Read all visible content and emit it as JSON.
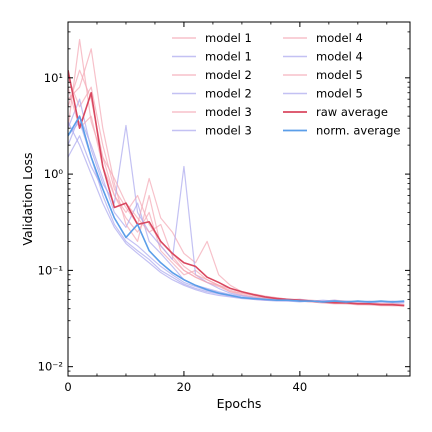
{
  "chart_data": {
    "type": "line",
    "title": "",
    "xlabel": "Epochs",
    "ylabel": "Validation Loss",
    "xlim": [
      0,
      59
    ],
    "ylim": [
      0.008,
      38
    ],
    "yscale": "log",
    "x_ticks": [
      0,
      20,
      40
    ],
    "x_tick_labels": [
      "0",
      "20",
      "40"
    ],
    "y_ticks": [
      0.01,
      0.1,
      1,
      10
    ],
    "y_tick_labels": [
      "10⁻²",
      "10⁻¹",
      "10⁰",
      "10¹"
    ],
    "grid": false,
    "legend": {
      "position": "top-right",
      "columns": 2
    },
    "series": [
      {
        "name": "model 1",
        "color": "#f4a6b4",
        "opacity": 0.7,
        "width": 1.2,
        "x": [
          0,
          2,
          4,
          6,
          8,
          10,
          12,
          14,
          16,
          18,
          20,
          22,
          24,
          26,
          28,
          30,
          32,
          34,
          36,
          38,
          40,
          42,
          44,
          46,
          48,
          50,
          52,
          54,
          56,
          58
        ],
        "values": [
          3.0,
          25,
          3.5,
          1.5,
          0.6,
          0.35,
          0.25,
          0.4,
          0.16,
          0.12,
          0.09,
          0.1,
          0.08,
          0.07,
          0.06,
          0.058,
          0.055,
          0.053,
          0.052,
          0.05,
          0.05,
          0.049,
          0.048,
          0.049,
          0.048,
          0.047,
          0.046,
          0.045,
          0.045,
          0.044
        ]
      },
      {
        "name": "model 1",
        "color": "#a9a6ee",
        "opacity": 0.7,
        "width": 1.2,
        "x": [
          0,
          2,
          4,
          6,
          8,
          10,
          12,
          14,
          16,
          18,
          20,
          22,
          24,
          26,
          28,
          30,
          32,
          34,
          36,
          38,
          40,
          42,
          44,
          46,
          48,
          50,
          52,
          54,
          56,
          58
        ],
        "values": [
          2.0,
          4.0,
          2.0,
          0.9,
          0.4,
          0.28,
          0.5,
          0.2,
          0.15,
          0.11,
          0.08,
          0.07,
          0.065,
          0.06,
          0.056,
          0.054,
          0.052,
          0.05,
          0.05,
          0.049,
          0.048,
          0.048,
          0.047,
          0.048,
          0.047,
          0.047,
          0.046,
          0.047,
          0.046,
          0.046
        ]
      },
      {
        "name": "model 2",
        "color": "#f4a6b4",
        "opacity": 0.7,
        "width": 1.2,
        "x": [
          0,
          2,
          4,
          6,
          8,
          10,
          12,
          14,
          16,
          18,
          20,
          22,
          24,
          26,
          28,
          30,
          32,
          34,
          36,
          38,
          40,
          42,
          44,
          46,
          48,
          50,
          52,
          54,
          56,
          58
        ],
        "values": [
          6.0,
          8.0,
          20,
          3.0,
          0.8,
          0.3,
          0.2,
          0.6,
          0.18,
          0.13,
          0.1,
          0.085,
          0.075,
          0.07,
          0.062,
          0.058,
          0.055,
          0.052,
          0.05,
          0.049,
          0.048,
          0.047,
          0.046,
          0.045,
          0.045,
          0.044,
          0.044,
          0.043,
          0.043,
          0.043
        ]
      },
      {
        "name": "model 2",
        "color": "#a9a6ee",
        "opacity": 0.7,
        "width": 1.2,
        "x": [
          0,
          2,
          4,
          6,
          8,
          10,
          12,
          14,
          16,
          18,
          20,
          22,
          24,
          26,
          28,
          30,
          32,
          34,
          36,
          38,
          40,
          42,
          44,
          46,
          48,
          50,
          52,
          54,
          56,
          58
        ],
        "values": [
          1.5,
          2.5,
          1.2,
          0.7,
          0.35,
          0.22,
          0.18,
          0.14,
          0.11,
          0.09,
          0.075,
          0.068,
          0.062,
          0.058,
          0.055,
          0.052,
          0.051,
          0.05,
          0.049,
          0.049,
          0.048,
          0.048,
          0.049,
          0.048,
          0.048,
          0.047,
          0.048,
          0.047,
          0.047,
          0.048
        ]
      },
      {
        "name": "model 3",
        "color": "#f4a6b4",
        "opacity": 0.7,
        "width": 1.2,
        "x": [
          0,
          2,
          4,
          6,
          8,
          10,
          12,
          14,
          16,
          18,
          20,
          22,
          24,
          26,
          28,
          30,
          32,
          34,
          36,
          38,
          40,
          42,
          44,
          46,
          48,
          50,
          52,
          54,
          56,
          58
        ],
        "values": [
          10,
          5.0,
          8.0,
          2.0,
          0.7,
          0.45,
          0.3,
          0.9,
          0.35,
          0.25,
          0.15,
          0.12,
          0.2,
          0.09,
          0.07,
          0.06,
          0.056,
          0.053,
          0.051,
          0.05,
          0.049,
          0.048,
          0.047,
          0.046,
          0.046,
          0.045,
          0.045,
          0.045,
          0.044,
          0.044
        ]
      },
      {
        "name": "model 3",
        "color": "#a9a6ee",
        "opacity": 0.7,
        "width": 1.2,
        "x": [
          0,
          2,
          4,
          6,
          8,
          10,
          12,
          14,
          16,
          18,
          20,
          22,
          24,
          26,
          28,
          30,
          32,
          34,
          36,
          38,
          40,
          42,
          44,
          46,
          48,
          50,
          52,
          54,
          56,
          58
        ],
        "values": [
          3.0,
          6.0,
          1.8,
          0.8,
          0.5,
          3.2,
          0.4,
          0.25,
          0.18,
          0.13,
          1.2,
          0.09,
          0.075,
          0.065,
          0.058,
          0.055,
          0.053,
          0.051,
          0.05,
          0.049,
          0.05,
          0.048,
          0.048,
          0.049,
          0.047,
          0.048,
          0.047,
          0.047,
          0.048,
          0.047
        ]
      },
      {
        "name": "model 4",
        "color": "#f4a6b4",
        "opacity": 0.7,
        "width": 1.2,
        "x": [
          0,
          2,
          4,
          6,
          8,
          10,
          12,
          14,
          16,
          18,
          20,
          22,
          24,
          26,
          28,
          30,
          32,
          34,
          36,
          38,
          40,
          42,
          44,
          46,
          48,
          50,
          52,
          54,
          56,
          58
        ],
        "values": [
          8.0,
          3.0,
          4.0,
          1.2,
          0.6,
          0.4,
          0.6,
          0.3,
          0.2,
          0.15,
          0.11,
          0.09,
          0.08,
          0.07,
          0.065,
          0.06,
          0.057,
          0.054,
          0.052,
          0.05,
          0.049,
          0.048,
          0.047,
          0.047,
          0.046,
          0.046,
          0.045,
          0.045,
          0.045,
          0.044
        ]
      },
      {
        "name": "model 4",
        "color": "#a9a6ee",
        "opacity": 0.7,
        "width": 1.2,
        "x": [
          0,
          2,
          4,
          6,
          8,
          10,
          12,
          14,
          16,
          18,
          20,
          22,
          24,
          26,
          28,
          30,
          32,
          34,
          36,
          38,
          40,
          42,
          44,
          46,
          48,
          50,
          52,
          54,
          56,
          58
        ],
        "values": [
          2.5,
          3.5,
          1.5,
          0.6,
          0.3,
          0.2,
          0.16,
          0.13,
          0.1,
          0.085,
          0.072,
          0.065,
          0.06,
          0.057,
          0.054,
          0.052,
          0.05,
          0.049,
          0.049,
          0.048,
          0.048,
          0.047,
          0.048,
          0.047,
          0.047,
          0.048,
          0.047,
          0.047,
          0.047,
          0.047
        ]
      },
      {
        "name": "model 5",
        "color": "#f4a6b4",
        "opacity": 0.7,
        "width": 1.2,
        "x": [
          0,
          2,
          4,
          6,
          8,
          10,
          12,
          14,
          16,
          18,
          20,
          22,
          24,
          26,
          28,
          30,
          32,
          34,
          36,
          38,
          40,
          42,
          44,
          46,
          48,
          50,
          52,
          54,
          56,
          58
        ],
        "values": [
          5.0,
          12,
          6.0,
          1.5,
          0.9,
          0.5,
          0.35,
          0.25,
          0.3,
          0.14,
          0.1,
          0.085,
          0.075,
          0.068,
          0.06,
          0.056,
          0.053,
          0.051,
          0.05,
          0.049,
          0.048,
          0.047,
          0.046,
          0.046,
          0.045,
          0.045,
          0.044,
          0.044,
          0.043,
          0.043
        ]
      },
      {
        "name": "model 5",
        "color": "#a9a6ee",
        "opacity": 0.7,
        "width": 1.2,
        "x": [
          0,
          2,
          4,
          6,
          8,
          10,
          12,
          14,
          16,
          18,
          20,
          22,
          24,
          26,
          28,
          30,
          32,
          34,
          36,
          38,
          40,
          42,
          44,
          46,
          48,
          50,
          52,
          54,
          56,
          58
        ],
        "values": [
          3.5,
          2.0,
          1.0,
          0.5,
          0.28,
          0.19,
          0.15,
          0.12,
          0.095,
          0.08,
          0.07,
          0.063,
          0.058,
          0.055,
          0.053,
          0.051,
          0.05,
          0.049,
          0.048,
          0.048,
          0.047,
          0.048,
          0.047,
          0.047,
          0.048,
          0.047,
          0.047,
          0.048,
          0.047,
          0.047
        ]
      },
      {
        "name": "raw average",
        "color": "#d9475f",
        "opacity": 1,
        "width": 1.6,
        "x": [
          0,
          2,
          4,
          6,
          8,
          10,
          12,
          14,
          16,
          18,
          20,
          22,
          24,
          26,
          28,
          30,
          32,
          34,
          36,
          38,
          40,
          42,
          44,
          46,
          48,
          50,
          52,
          54,
          56,
          58
        ],
        "values": [
          12,
          3.0,
          7.0,
          1.2,
          0.45,
          0.5,
          0.3,
          0.32,
          0.2,
          0.15,
          0.12,
          0.11,
          0.085,
          0.075,
          0.065,
          0.06,
          0.056,
          0.053,
          0.051,
          0.05,
          0.049,
          0.048,
          0.047,
          0.046,
          0.046,
          0.045,
          0.045,
          0.044,
          0.044,
          0.043
        ]
      },
      {
        "name": "norm. average",
        "color": "#5b9ee9",
        "opacity": 1,
        "width": 1.6,
        "x": [
          0,
          2,
          4,
          6,
          8,
          10,
          12,
          14,
          16,
          18,
          20,
          22,
          24,
          26,
          28,
          30,
          32,
          34,
          36,
          38,
          40,
          42,
          44,
          46,
          48,
          50,
          52,
          54,
          56,
          58
        ],
        "values": [
          2.5,
          4.0,
          1.5,
          0.7,
          0.35,
          0.22,
          0.3,
          0.16,
          0.12,
          0.095,
          0.08,
          0.07,
          0.063,
          0.058,
          0.055,
          0.052,
          0.051,
          0.05,
          0.049,
          0.049,
          0.048,
          0.048,
          0.047,
          0.048,
          0.047,
          0.048,
          0.047,
          0.048,
          0.047,
          0.048
        ]
      }
    ]
  }
}
